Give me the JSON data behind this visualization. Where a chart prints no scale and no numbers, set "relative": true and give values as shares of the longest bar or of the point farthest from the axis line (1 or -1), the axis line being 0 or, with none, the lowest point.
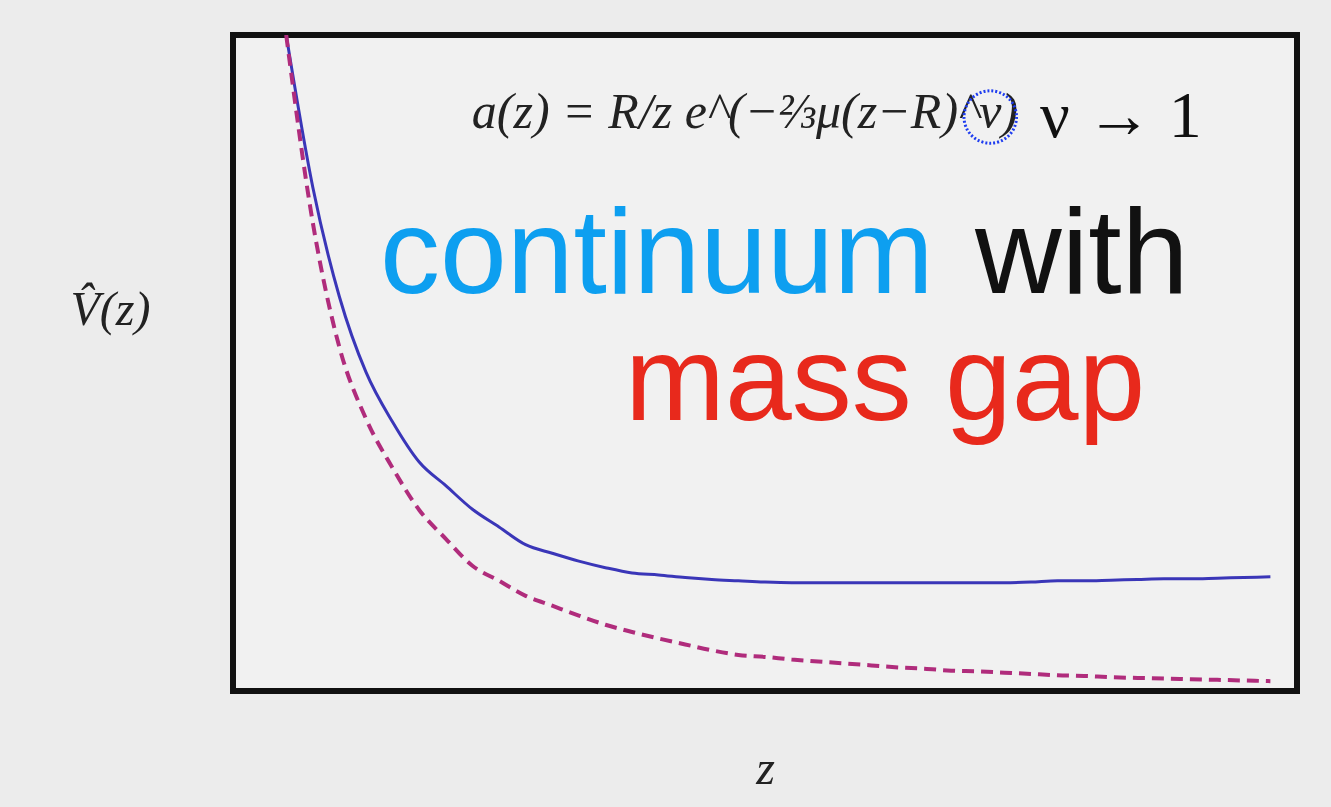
{
  "chart_data": {
    "type": "line",
    "relative": true,
    "xlabel": "z",
    "ylabel": "V̂(z)",
    "categories": [
      null,
      null,
      null,
      null,
      null,
      null,
      null,
      null,
      null,
      null,
      null,
      null,
      null,
      null,
      null,
      null,
      null,
      null,
      null,
      null,
      null,
      null,
      null,
      null,
      null,
      null,
      null,
      null,
      null,
      null,
      null,
      null,
      null,
      null,
      null,
      null,
      null,
      null,
      null,
      null,
      null
    ],
    "series": [
      {
        "color": "#3a36b8",
        "line_style": "solid",
        "values": [
          null,
          null,
          1.0,
          0.768,
          0.601,
          0.486,
          0.41,
          0.349,
          0.313,
          0.277,
          0.25,
          0.223,
          0.21,
          0.198,
          0.188,
          0.18,
          0.177,
          0.173,
          0.17,
          0.168,
          0.166,
          0.165,
          0.165,
          0.165,
          0.165,
          0.165,
          0.165,
          0.165,
          0.165,
          0.165,
          0.166,
          0.168,
          0.168,
          0.169,
          0.17,
          0.171,
          0.171,
          0.172,
          0.173,
          0.174,
          null
        ]
      },
      {
        "color": "#b02c7c",
        "line_style": "dashed",
        "values": [
          null,
          null,
          1.0,
          0.714,
          0.524,
          0.415,
          0.34,
          0.276,
          0.232,
          0.191,
          0.168,
          0.145,
          0.13,
          0.115,
          0.101,
          0.09,
          0.08,
          0.071,
          0.062,
          0.055,
          0.052,
          0.048,
          0.045,
          0.042,
          0.039,
          0.036,
          0.034,
          0.031,
          0.03,
          0.028,
          0.026,
          0.024,
          0.023,
          0.021,
          0.02,
          0.019,
          0.018,
          0.017,
          0.016,
          0.015,
          null
        ]
      }
    ],
    "annotations": [
      "a(z) = R/z e^(−⅔μ(z−R)^ν)",
      "ν → 1",
      "continuum",
      "with",
      "mass gap"
    ]
  }
}
